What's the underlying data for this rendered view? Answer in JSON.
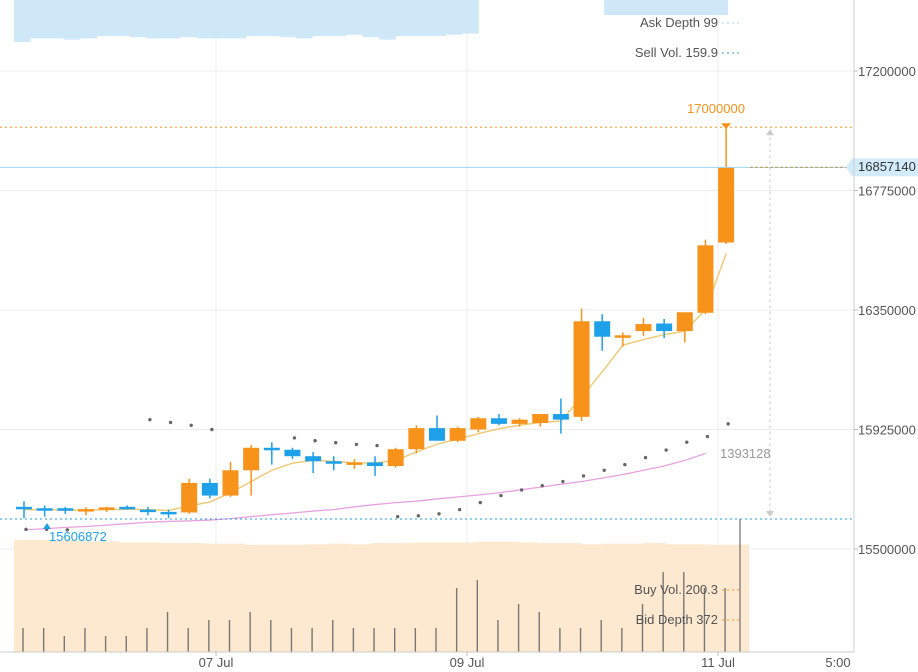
{
  "chart_data": {
    "type": "candlestick",
    "x_ticks": [
      "07 Jul",
      "09 Jul",
      "11 Jul",
      "5:00"
    ],
    "y_ticks": [
      17200000,
      16775000,
      16350000,
      15925000,
      15500000
    ],
    "ylim": [
      15500000,
      17200000
    ],
    "grid": true,
    "candles": [
      {
        "o": 15645000,
        "h": 15670000,
        "l": 15610000,
        "c": 15650000,
        "dir": "down"
      },
      {
        "o": 15640000,
        "h": 15655000,
        "l": 15615000,
        "c": 15645000,
        "dir": "down"
      },
      {
        "o": 15645000,
        "h": 15650000,
        "l": 15625000,
        "c": 15640000,
        "dir": "down"
      },
      {
        "o": 15640000,
        "h": 15648000,
        "l": 15620000,
        "c": 15642000,
        "dir": "up"
      },
      {
        "o": 15642000,
        "h": 15650000,
        "l": 15632000,
        "c": 15648000,
        "dir": "up"
      },
      {
        "o": 15650000,
        "h": 15655000,
        "l": 15640000,
        "c": 15645000,
        "dir": "down"
      },
      {
        "o": 15640000,
        "h": 15650000,
        "l": 15620000,
        "c": 15635000,
        "dir": "down"
      },
      {
        "o": 15632000,
        "h": 15640000,
        "l": 15610000,
        "c": 15630000,
        "dir": "down"
      },
      {
        "o": 15630000,
        "h": 15750000,
        "l": 15625000,
        "c": 15735000,
        "dir": "up"
      },
      {
        "o": 15735000,
        "h": 15750000,
        "l": 15680000,
        "c": 15690000,
        "dir": "down"
      },
      {
        "o": 15690000,
        "h": 15810000,
        "l": 15685000,
        "c": 15780000,
        "dir": "up"
      },
      {
        "o": 15780000,
        "h": 15870000,
        "l": 15690000,
        "c": 15860000,
        "dir": "up"
      },
      {
        "o": 15860000,
        "h": 15880000,
        "l": 15800000,
        "c": 15855000,
        "dir": "down"
      },
      {
        "o": 15853000,
        "h": 15860000,
        "l": 15820000,
        "c": 15830000,
        "dir": "down"
      },
      {
        "o": 15830000,
        "h": 15845000,
        "l": 15770000,
        "c": 15812000,
        "dir": "down"
      },
      {
        "o": 15812000,
        "h": 15830000,
        "l": 15780000,
        "c": 15805000,
        "dir": "down"
      },
      {
        "o": 15805000,
        "h": 15820000,
        "l": 15785000,
        "c": 15808000,
        "dir": "up"
      },
      {
        "o": 15808000,
        "h": 15830000,
        "l": 15760000,
        "c": 15795000,
        "dir": "down"
      },
      {
        "o": 15795000,
        "h": 15860000,
        "l": 15790000,
        "c": 15855000,
        "dir": "up"
      },
      {
        "o": 15855000,
        "h": 15940000,
        "l": 15840000,
        "c": 15930000,
        "dir": "up"
      },
      {
        "o": 15930000,
        "h": 15975000,
        "l": 15890000,
        "c": 15885000,
        "dir": "down"
      },
      {
        "o": 15885000,
        "h": 15935000,
        "l": 15880000,
        "c": 15930000,
        "dir": "up"
      },
      {
        "o": 15925000,
        "h": 15970000,
        "l": 15915000,
        "c": 15965000,
        "dir": "up"
      },
      {
        "o": 15965000,
        "h": 15980000,
        "l": 15940000,
        "c": 15945000,
        "dir": "down"
      },
      {
        "o": 15945000,
        "h": 15965000,
        "l": 15935000,
        "c": 15960000,
        "dir": "up"
      },
      {
        "o": 15948000,
        "h": 15975000,
        "l": 15935000,
        "c": 15980000,
        "dir": "up"
      },
      {
        "o": 15980000,
        "h": 16035000,
        "l": 15910000,
        "c": 15960000,
        "dir": "down"
      },
      {
        "o": 15970000,
        "h": 16355000,
        "l": 15955000,
        "c": 16310000,
        "dir": "up"
      },
      {
        "o": 16310000,
        "h": 16335000,
        "l": 16205000,
        "c": 16255000,
        "dir": "down"
      },
      {
        "o": 16255000,
        "h": 16270000,
        "l": 16220000,
        "c": 16260000,
        "dir": "up"
      },
      {
        "o": 16275000,
        "h": 16322000,
        "l": 16258000,
        "c": 16300000,
        "dir": "up"
      },
      {
        "o": 16302000,
        "h": 16318000,
        "l": 16250000,
        "c": 16275000,
        "dir": "down"
      },
      {
        "o": 16275000,
        "h": 16340000,
        "l": 16235000,
        "c": 16342000,
        "dir": "up"
      },
      {
        "o": 16340000,
        "h": 16600000,
        "l": 16335000,
        "c": 16580000,
        "dir": "up"
      },
      {
        "o": 16590000,
        "h": 17000000,
        "l": 16585000,
        "c": 16857140,
        "dir": "up"
      }
    ],
    "ma_line": [
      15640000,
      15640000,
      15638000,
      15638000,
      15640000,
      15641000,
      15640000,
      15637000,
      15653000,
      15667000,
      15700000,
      15740000,
      15780000,
      15805000,
      15815000,
      15812000,
      15806000,
      15806000,
      15815000,
      15845000,
      15873000,
      15890000,
      15910000,
      15928000,
      15940000,
      15950000,
      15955000,
      16040000,
      16130000,
      16225000,
      16245000,
      16262000,
      16275000,
      16350000,
      16550000
    ],
    "sar_dots": [
      {
        "i": 0,
        "v": 15570000
      },
      {
        "i": 1,
        "v": 15570000
      },
      {
        "i": 2,
        "v": 15568000
      },
      {
        "i": 6,
        "v": 15960000
      },
      {
        "i": 7,
        "v": 15950000
      },
      {
        "i": 8,
        "v": 15940000
      },
      {
        "i": 9,
        "v": 15925000
      },
      {
        "i": 13,
        "v": 15895000
      },
      {
        "i": 14,
        "v": 15885000
      },
      {
        "i": 15,
        "v": 15878000
      },
      {
        "i": 16,
        "v": 15872000
      },
      {
        "i": 17,
        "v": 15868000
      },
      {
        "i": 18,
        "v": 15615000
      },
      {
        "i": 19,
        "v": 15618000
      },
      {
        "i": 20,
        "v": 15625000
      },
      {
        "i": 21,
        "v": 15640000
      },
      {
        "i": 22,
        "v": 15665000
      },
      {
        "i": 23,
        "v": 15690000
      },
      {
        "i": 24,
        "v": 15710000
      },
      {
        "i": 25,
        "v": 15725000
      },
      {
        "i": 26,
        "v": 15740000
      },
      {
        "i": 27,
        "v": 15760000
      },
      {
        "i": 28,
        "v": 15780000
      },
      {
        "i": 29,
        "v": 15800000
      },
      {
        "i": 30,
        "v": 15825000
      },
      {
        "i": 31,
        "v": 15852000
      },
      {
        "i": 32,
        "v": 15880000
      },
      {
        "i": 33,
        "v": 15900000
      },
      {
        "i": 34,
        "v": 15945000
      }
    ],
    "pink_line": [
      15568000,
      15572000,
      15577000,
      15580000,
      15585000,
      15590000,
      15595000,
      15598000,
      15600000,
      15603000,
      15608000,
      15615000,
      15622000,
      15628000,
      15635000,
      15640000,
      15650000,
      15658000,
      15665000,
      15670000,
      15678000,
      15685000,
      15692000,
      15700000,
      15710000,
      15720000,
      15730000,
      15740000,
      15752000,
      15765000,
      15780000,
      15795000,
      15815000,
      15840000
    ],
    "volumes": [
      3,
      3,
      2,
      3,
      2,
      2,
      3,
      5,
      3,
      4,
      4,
      5,
      4,
      3,
      3,
      4,
      3,
      3,
      3,
      3,
      3,
      8,
      9,
      4,
      6,
      5,
      3,
      3,
      4,
      3,
      6,
      10,
      10,
      8,
      8
    ],
    "bid_depth_area": [
      9,
      9,
      9,
      8.8,
      8.8,
      8.6,
      8.6,
      8.5,
      8.5,
      8.4,
      8.4,
      8.2,
      8.2,
      8.2,
      8.3,
      8.4,
      8.3,
      8.5,
      8.5,
      8.6,
      8.6,
      8.6,
      8.7,
      8.7,
      8.6,
      8.5,
      8.5,
      8.3,
      8.4,
      8.4,
      8.5,
      8.3,
      8.3,
      8.2,
      8.2
    ],
    "ask_depth_area": [
      3.5,
      3.2,
      3.2,
      3.3,
      3.2,
      3.0,
      3.0,
      3.1,
      3.2,
      3.2,
      3.1,
      3.2,
      3.2,
      3.2,
      3.0,
      3.0,
      3.1,
      3.2,
      3.0,
      3.0,
      2.9,
      3.1,
      3.3,
      3.0,
      3.0,
      3.0,
      2.9,
      2.8,
      0,
      0,
      0,
      0,
      0,
      0,
      0
    ],
    "max_price": 17000000,
    "min_price": 15606872,
    "last_price": 16857140,
    "range_value": 1393128,
    "ask_depth_label": "Ask Depth 99",
    "sell_vol_label": "Sell Vol. 159.9",
    "buy_vol_label": "Buy Vol. 200.3",
    "bid_depth_label": "Bid Depth 372",
    "colors": {
      "up": "#f7931a",
      "down": "#1ea1e8",
      "ma": "#f0c870",
      "pink": "#e9a0e0",
      "ask_area": "#cfe8f7",
      "bid_area": "#fde9cf",
      "grid": "#ececec"
    }
  }
}
